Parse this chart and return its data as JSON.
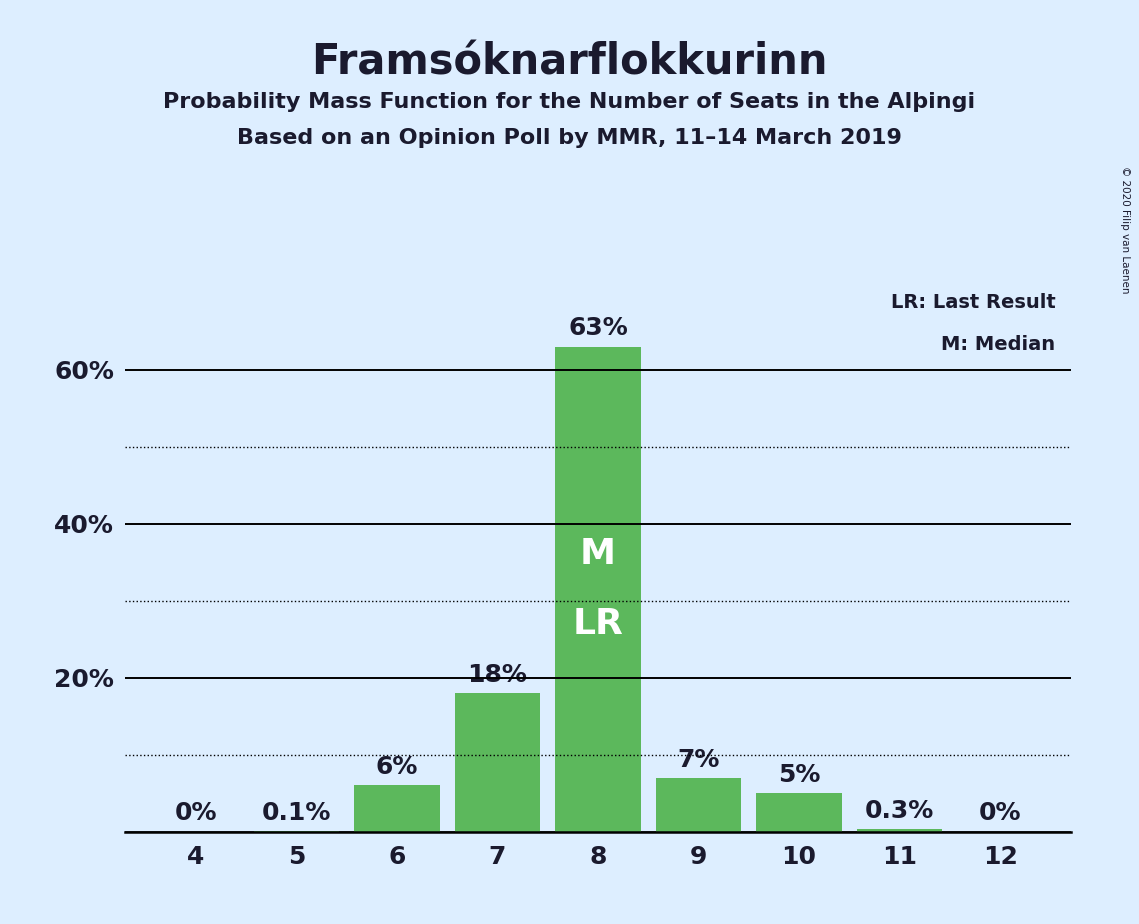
{
  "title": "Framsóknarflokkurinn",
  "subtitle1": "Probability Mass Function for the Number of Seats in the Alþingi",
  "subtitle2": "Based on an Opinion Poll by MMR, 11–14 March 2019",
  "copyright": "© 2020 Filip van Laenen",
  "legend_line1": "LR: Last Result",
  "legend_line2": "M: Median",
  "seats": [
    4,
    5,
    6,
    7,
    8,
    9,
    10,
    11,
    12
  ],
  "probabilities": [
    0.0,
    0.1,
    6.0,
    18.0,
    63.0,
    7.0,
    5.0,
    0.3,
    0.0
  ],
  "labels": [
    "0%",
    "0.1%",
    "6%",
    "18%",
    "63%",
    "7%",
    "5%",
    "0.3%",
    "0%"
  ],
  "bar_color": "#5cb85c",
  "background_color": "#ddeeff",
  "text_color": "#1a1a2e",
  "median_seat": 8,
  "last_result_seat": 8,
  "median_label": "M",
  "lr_label": "LR",
  "ylim": [
    0,
    72
  ],
  "solid_ticks": [
    0,
    20,
    40,
    60
  ],
  "dotted_ticks": [
    10,
    30,
    50
  ],
  "title_fontsize": 30,
  "subtitle_fontsize": 16,
  "tick_fontsize": 18,
  "annotation_fontsize": 18,
  "inside_label_fontsize": 26
}
